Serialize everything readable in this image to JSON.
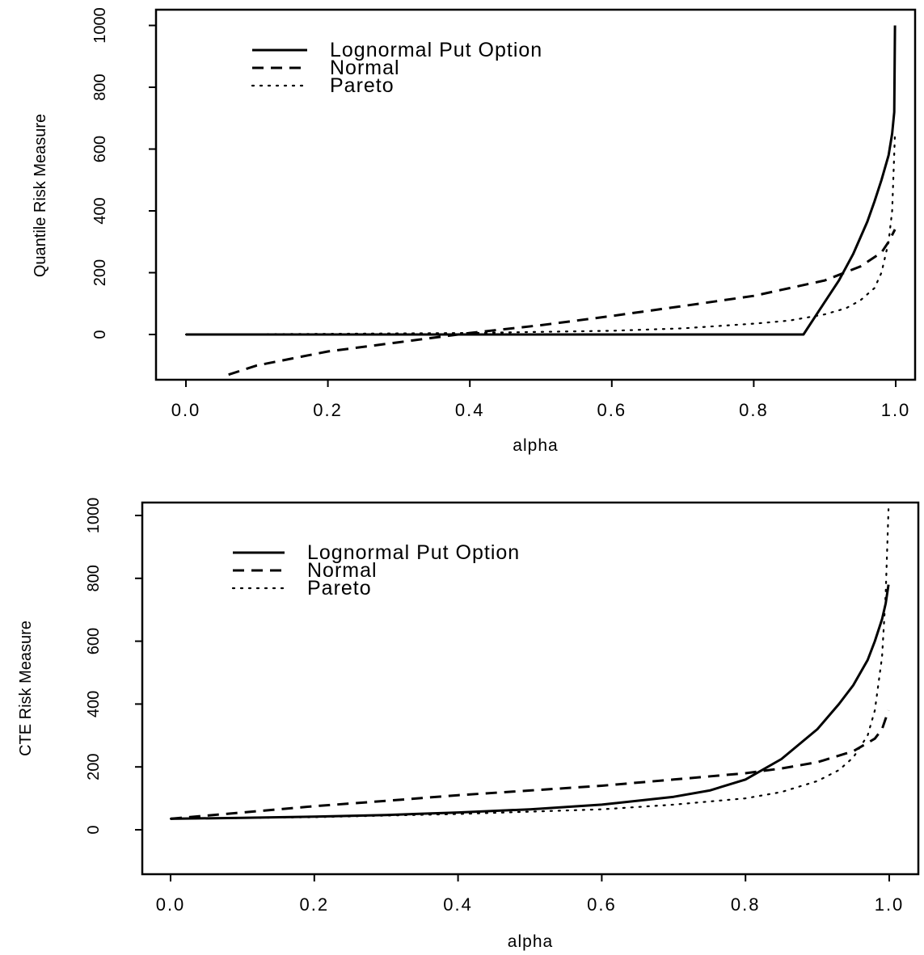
{
  "chart_data": [
    {
      "type": "line",
      "xlabel": "alpha",
      "ylabel": "Quantile Risk Measure",
      "xlim": [
        0,
        1
      ],
      "ylim": [
        -140,
        1000
      ],
      "xticks": [
        "0.0",
        "0.2",
        "0.4",
        "0.6",
        "0.8",
        "1.0"
      ],
      "yticks": [
        "0",
        "200",
        "400",
        "600",
        "800",
        "1000"
      ],
      "legend_position": "top-left",
      "series": [
        {
          "name": "Lognormal Put Option",
          "style": "solid",
          "x": [
            0.0,
            0.1,
            0.2,
            0.3,
            0.4,
            0.5,
            0.6,
            0.7,
            0.8,
            0.87,
            0.9,
            0.92,
            0.94,
            0.96,
            0.97,
            0.98,
            0.99,
            0.995,
            0.998,
            0.999
          ],
          "y": [
            0,
            0,
            0,
            0,
            0,
            0,
            0,
            0,
            0,
            0,
            105,
            175,
            260,
            365,
            430,
            500,
            580,
            650,
            720,
            1000
          ]
        },
        {
          "name": "Normal",
          "style": "dashed",
          "x": [
            0.06,
            0.1,
            0.2,
            0.3,
            0.4,
            0.5,
            0.6,
            0.7,
            0.8,
            0.9,
            0.95,
            0.98,
            0.99,
            0.999
          ],
          "y": [
            -130,
            -100,
            -55,
            -25,
            5,
            30,
            60,
            92,
            125,
            175,
            220,
            265,
            300,
            340
          ]
        },
        {
          "name": "Pareto",
          "style": "dotted",
          "x": [
            0.0,
            0.2,
            0.4,
            0.6,
            0.7,
            0.8,
            0.85,
            0.9,
            0.93,
            0.95,
            0.97,
            0.98,
            0.99,
            0.995,
            0.999
          ],
          "y": [
            0,
            2,
            5,
            12,
            20,
            35,
            45,
            65,
            85,
            110,
            150,
            200,
            300,
            400,
            650
          ]
        }
      ]
    },
    {
      "type": "line",
      "xlabel": "alpha",
      "ylabel": "CTE Risk Measure",
      "xlim": [
        0,
        1
      ],
      "ylim": [
        -130,
        1000
      ],
      "xticks": [
        "0.0",
        "0.2",
        "0.4",
        "0.6",
        "0.8",
        "1.0"
      ],
      "yticks": [
        "0",
        "200",
        "400",
        "600",
        "800",
        "1000"
      ],
      "legend_position": "top-left",
      "series": [
        {
          "name": "Lognormal Put Option",
          "style": "solid",
          "x": [
            0.0,
            0.1,
            0.2,
            0.3,
            0.4,
            0.5,
            0.6,
            0.7,
            0.75,
            0.8,
            0.85,
            0.9,
            0.93,
            0.95,
            0.97,
            0.98,
            0.99,
            0.995,
            0.999
          ],
          "y": [
            35,
            38,
            42,
            47,
            55,
            65,
            80,
            105,
            125,
            160,
            225,
            320,
            400,
            460,
            540,
            600,
            670,
            720,
            780
          ]
        },
        {
          "name": "Normal",
          "style": "dashed",
          "x": [
            0.0,
            0.1,
            0.2,
            0.3,
            0.4,
            0.5,
            0.6,
            0.7,
            0.8,
            0.85,
            0.9,
            0.95,
            0.98,
            0.99,
            0.999
          ],
          "y": [
            35,
            55,
            75,
            92,
            110,
            125,
            140,
            160,
            180,
            195,
            215,
            250,
            290,
            320,
            380
          ]
        },
        {
          "name": "Pareto",
          "style": "dotted",
          "x": [
            0.0,
            0.2,
            0.4,
            0.6,
            0.7,
            0.8,
            0.85,
            0.9,
            0.93,
            0.95,
            0.97,
            0.98,
            0.99,
            0.995,
            0.999
          ],
          "y": [
            35,
            40,
            50,
            65,
            80,
            100,
            120,
            155,
            190,
            230,
            300,
            380,
            550,
            750,
            1020
          ]
        }
      ]
    }
  ]
}
